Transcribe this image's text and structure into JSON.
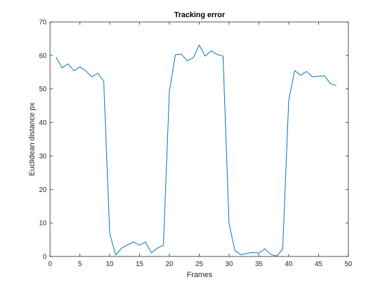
{
  "chart_data": {
    "type": "line",
    "title": "Tracking error",
    "xlabel": "Frames",
    "ylabel": "Euclidean distance px",
    "xlim": [
      0,
      50
    ],
    "ylim": [
      0,
      70
    ],
    "xticks": [
      0,
      5,
      10,
      15,
      20,
      25,
      30,
      35,
      40,
      45,
      50
    ],
    "yticks": [
      0,
      10,
      20,
      30,
      40,
      50,
      60,
      70
    ],
    "grid": false,
    "box": true,
    "line_color": "#0072BD",
    "series": [
      {
        "x": [
          1,
          2,
          3,
          4,
          5,
          6,
          7,
          8,
          9,
          10,
          11,
          12,
          13,
          14,
          15,
          16,
          17,
          18,
          19,
          20,
          21,
          22,
          23,
          24,
          25,
          26,
          27,
          28,
          29,
          30,
          31,
          32,
          33,
          34,
          35,
          36,
          37,
          38,
          39,
          40,
          41,
          42,
          43,
          44,
          45,
          46,
          47,
          48
        ],
        "values": [
          59.5,
          56.3,
          57.5,
          55.4,
          56.6,
          55.4,
          53.6,
          54.7,
          52.3,
          6.8,
          0.4,
          2.5,
          3.5,
          4.3,
          3.4,
          4.3,
          1.1,
          2.5,
          3.4,
          49.3,
          60.2,
          60.4,
          58.4,
          59.3,
          63.1,
          59.8,
          61.4,
          60.3,
          59.8,
          9.8,
          1.7,
          0.5,
          0.9,
          1.2,
          1.0,
          2.3,
          0.6,
          0.1,
          2.2,
          46.6,
          55.5,
          54.1,
          55.2,
          53.6,
          53.8,
          53.9,
          51.6,
          51.0
        ]
      }
    ]
  }
}
